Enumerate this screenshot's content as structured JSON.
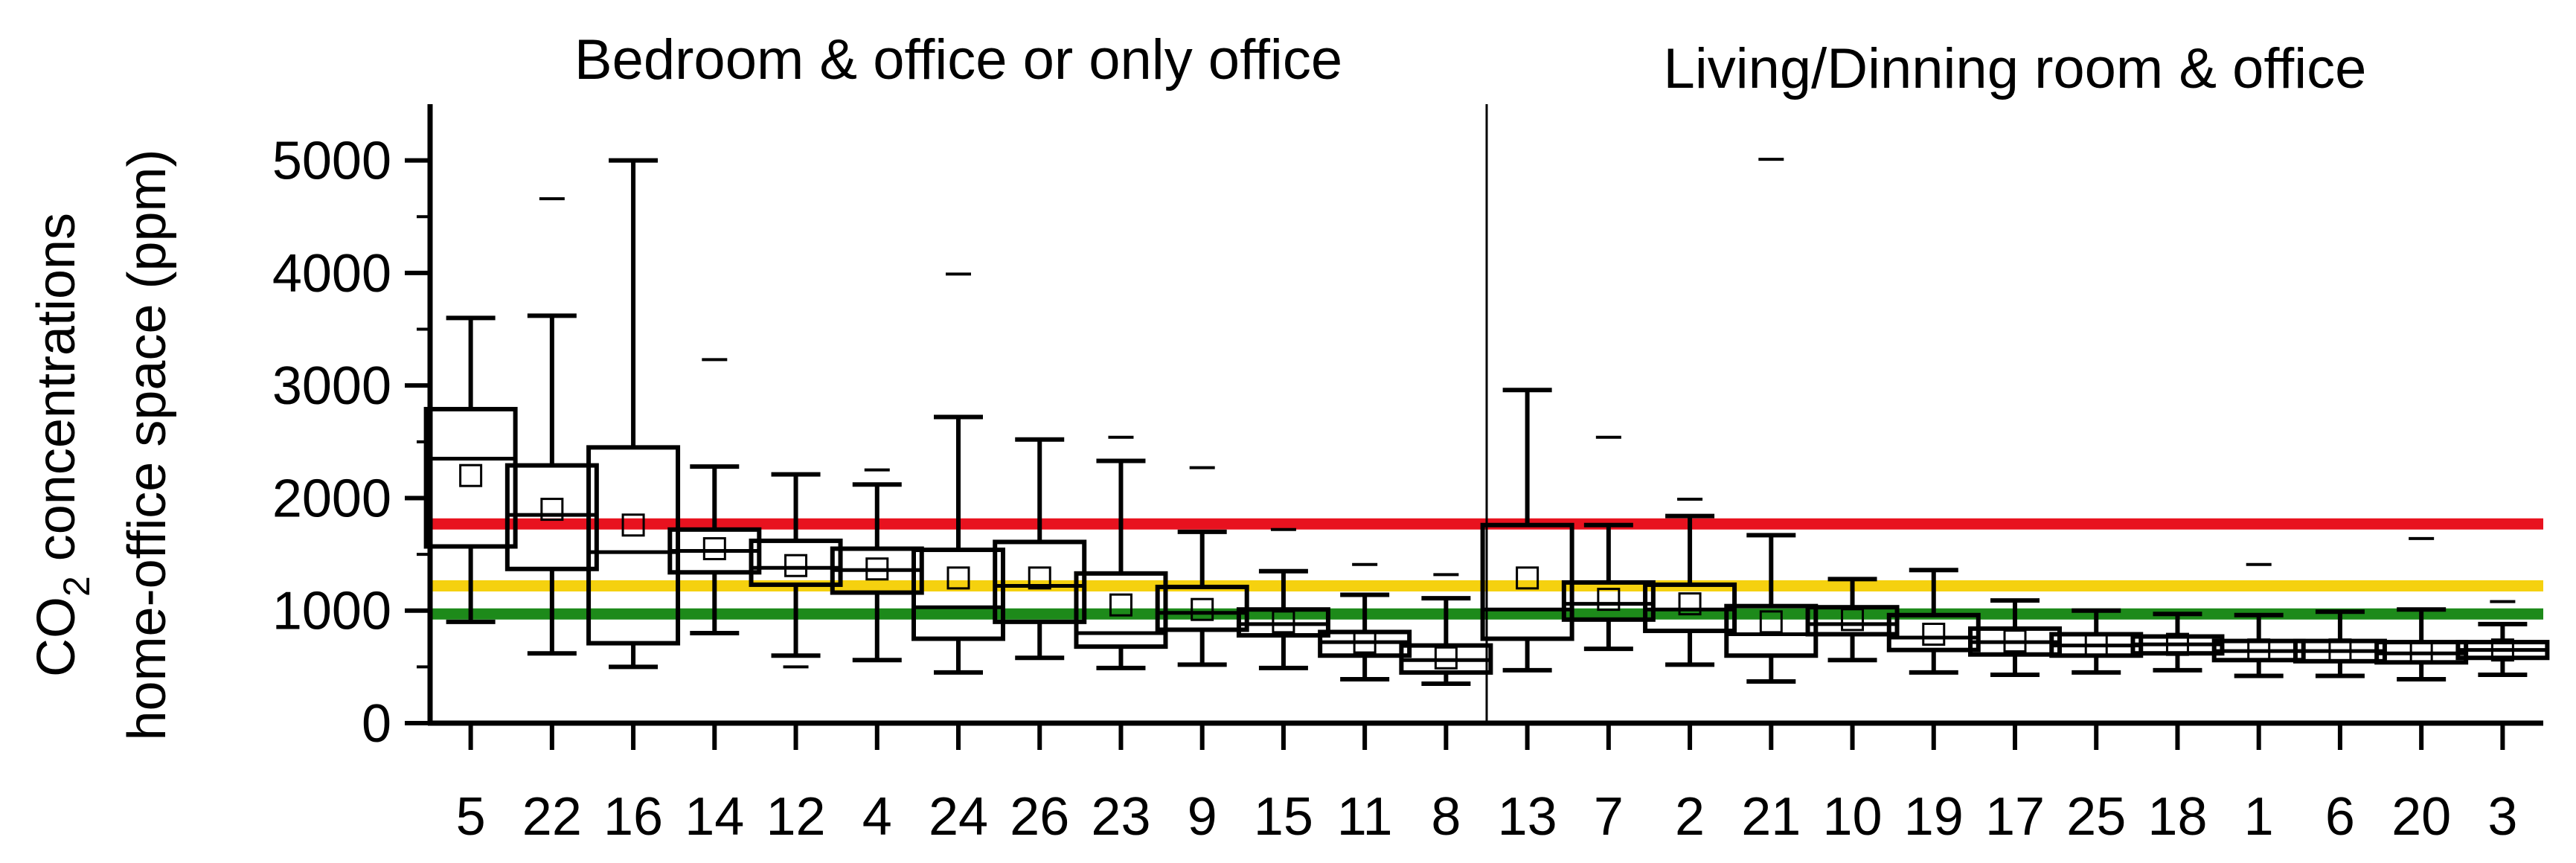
{
  "chart_data": {
    "type": "box",
    "ylabel_line1_main": "CO",
    "ylabel_line1_sub": "2",
    "ylabel_line1_rest": " concentrations",
    "ylabel_line2": "home-office space (ppm)",
    "ylim": [
      0,
      5500
    ],
    "yticks": [
      0,
      1000,
      2000,
      3000,
      4000,
      5000
    ],
    "groups": [
      {
        "label": "Bedroom & office or only office",
        "count": 13
      },
      {
        "label": "Living/Dinning room & office",
        "count": 13
      }
    ],
    "thresholds": [
      {
        "value": 1770,
        "color": "#e8121f"
      },
      {
        "value": 1220,
        "color": "#f5d10f"
      },
      {
        "value": 970,
        "color": "#1d8a1a"
      }
    ],
    "boxes": [
      {
        "label": "5",
        "min": 900,
        "q1": 1570,
        "median": 2350,
        "q3": 2790,
        "max": 3600,
        "mean": 2200,
        "outlier": null
      },
      {
        "label": "22",
        "min": 620,
        "q1": 1370,
        "median": 1850,
        "q3": 2290,
        "max": 3620,
        "mean": 1900,
        "outlier": 4660
      },
      {
        "label": "16",
        "min": 500,
        "q1": 710,
        "median": 1520,
        "q3": 2450,
        "max": 5000,
        "mean": 1760,
        "outlier": null
      },
      {
        "label": "14",
        "min": 800,
        "q1": 1340,
        "median": 1530,
        "q3": 1720,
        "max": 2280,
        "mean": 1550,
        "outlier": 3230
      },
      {
        "label": "12",
        "min": 600,
        "q1": 1230,
        "median": 1380,
        "q3": 1620,
        "max": 2210,
        "mean": 1400,
        "outlier": 500
      },
      {
        "label": "4",
        "min": 560,
        "q1": 1160,
        "median": 1360,
        "q3": 1550,
        "max": 2120,
        "mean": 1370,
        "outlier": 2250
      },
      {
        "label": "24",
        "min": 450,
        "q1": 750,
        "median": 1030,
        "q3": 1540,
        "max": 2720,
        "mean": 1290,
        "outlier": 3990
      },
      {
        "label": "26",
        "min": 580,
        "q1": 900,
        "median": 1220,
        "q3": 1610,
        "max": 2520,
        "mean": 1290,
        "outlier": null
      },
      {
        "label": "23",
        "min": 490,
        "q1": 680,
        "median": 800,
        "q3": 1330,
        "max": 2330,
        "mean": 1050,
        "outlier": 2540
      },
      {
        "label": "9",
        "min": 520,
        "q1": 830,
        "median": 980,
        "q3": 1210,
        "max": 1700,
        "mean": 1010,
        "outlier": 2270
      },
      {
        "label": "15",
        "min": 490,
        "q1": 780,
        "median": 880,
        "q3": 1010,
        "max": 1350,
        "mean": 900,
        "outlier": 1720
      },
      {
        "label": "11",
        "min": 390,
        "q1": 600,
        "median": 720,
        "q3": 810,
        "max": 1140,
        "mean": 720,
        "outlier": 1410
      },
      {
        "label": "8",
        "min": 350,
        "q1": 450,
        "median": 560,
        "q3": 690,
        "max": 1110,
        "mean": 580,
        "outlier": 1320
      },
      {
        "label": "13",
        "min": 470,
        "q1": 750,
        "median": 1010,
        "q3": 1760,
        "max": 2960,
        "mean": 1290,
        "outlier": null
      },
      {
        "label": "7",
        "min": 660,
        "q1": 920,
        "median": 1060,
        "q3": 1250,
        "max": 1760,
        "mean": 1100,
        "outlier": 2540
      },
      {
        "label": "2",
        "min": 520,
        "q1": 820,
        "median": 1010,
        "q3": 1230,
        "max": 1840,
        "mean": 1060,
        "outlier": 1990
      },
      {
        "label": "21",
        "min": 370,
        "q1": 600,
        "median": 790,
        "q3": 1040,
        "max": 1670,
        "mean": 900,
        "outlier": 5010
      },
      {
        "label": "10",
        "min": 560,
        "q1": 790,
        "median": 880,
        "q3": 1030,
        "max": 1280,
        "mean": 920,
        "outlier": null
      },
      {
        "label": "19",
        "min": 450,
        "q1": 650,
        "median": 760,
        "q3": 960,
        "max": 1360,
        "mean": 790,
        "outlier": null
      },
      {
        "label": "17",
        "min": 430,
        "q1": 610,
        "median": 720,
        "q3": 840,
        "max": 1090,
        "mean": 730,
        "outlier": null
      },
      {
        "label": "25",
        "min": 450,
        "q1": 600,
        "median": 690,
        "q3": 790,
        "max": 1000,
        "mean": 700,
        "outlier": null
      },
      {
        "label": "18",
        "min": 470,
        "q1": 620,
        "median": 700,
        "q3": 770,
        "max": 970,
        "mean": 700,
        "outlier": null
      },
      {
        "label": "1",
        "min": 420,
        "q1": 560,
        "median": 640,
        "q3": 730,
        "max": 960,
        "mean": 650,
        "outlier": 1410
      },
      {
        "label": "6",
        "min": 420,
        "q1": 550,
        "median": 640,
        "q3": 730,
        "max": 990,
        "mean": 650,
        "outlier": null
      },
      {
        "label": "20",
        "min": 390,
        "q1": 540,
        "median": 620,
        "q3": 720,
        "max": 1010,
        "mean": 630,
        "outlier": 1640
      },
      {
        "label": "3",
        "min": 430,
        "q1": 580,
        "median": 650,
        "q3": 720,
        "max": 880,
        "mean": 650,
        "outlier": 1080
      }
    ]
  }
}
